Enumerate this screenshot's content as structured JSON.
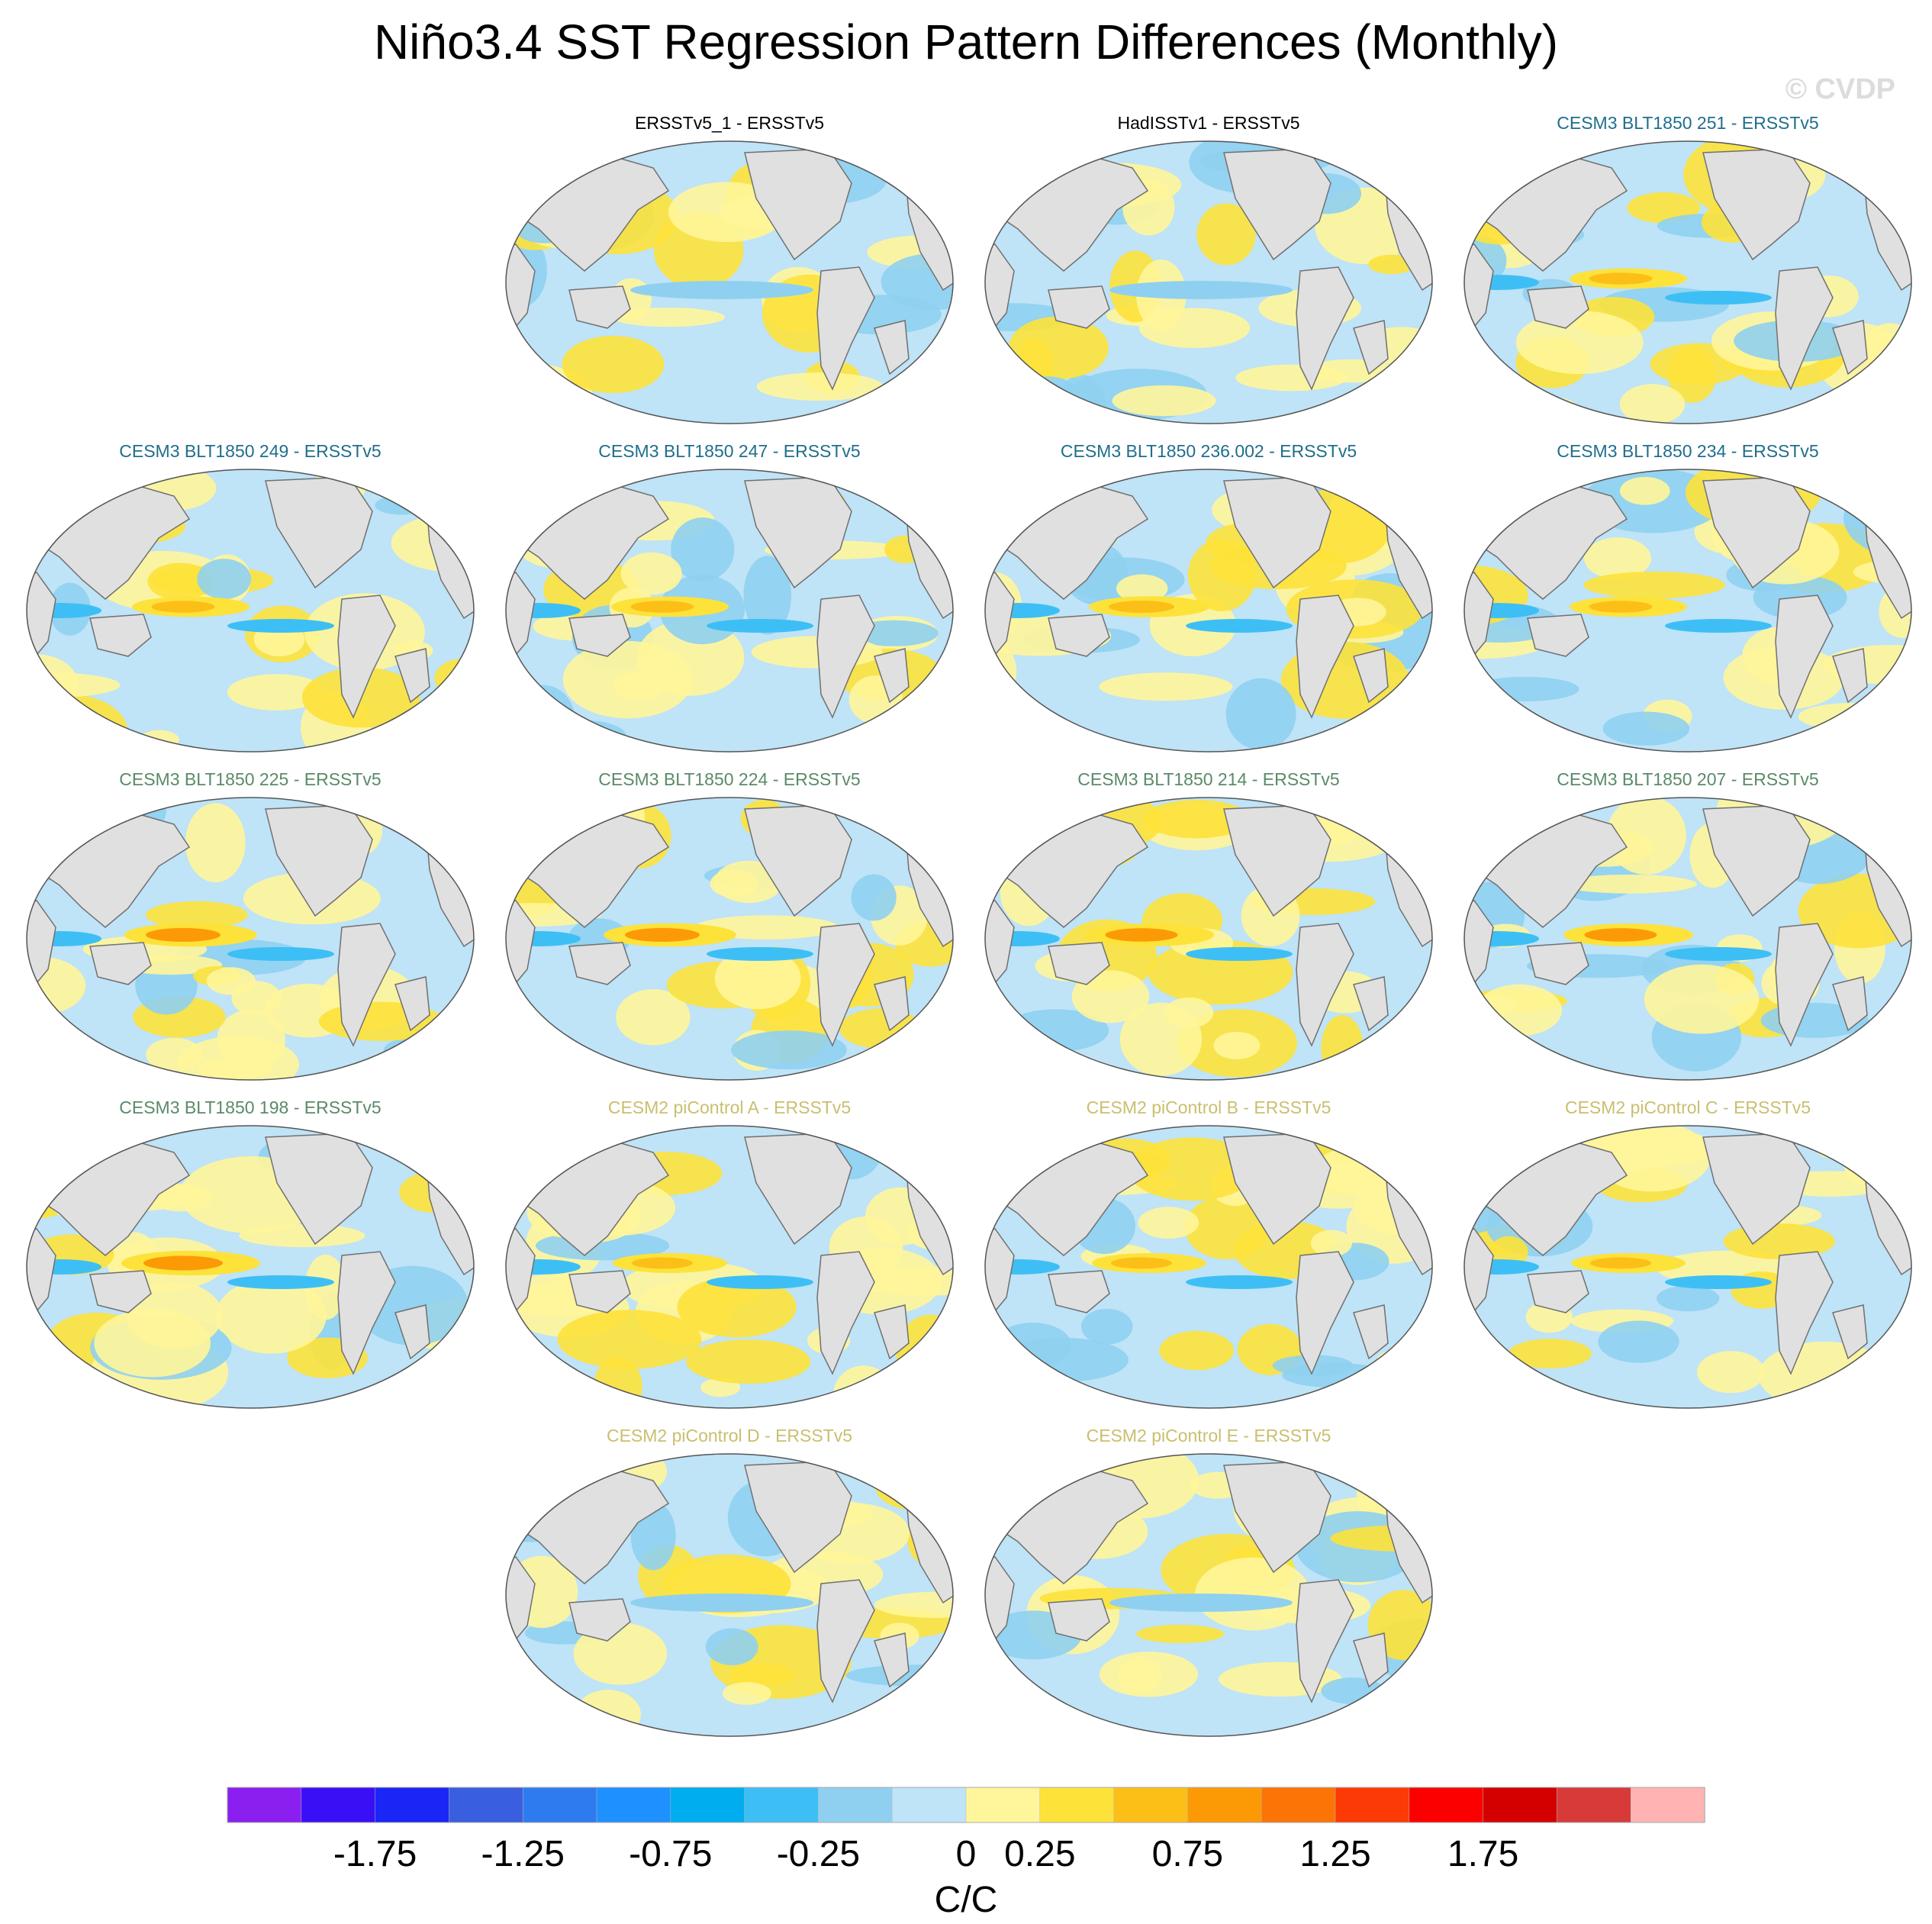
{
  "title": "Niño3.4 SST Regression Pattern Differences (Monthly)",
  "watermark": "© CVDP",
  "chart_data": {
    "type": "heatmap",
    "title": "Niño3.4 SST Regression Pattern Differences (Monthly)",
    "projection": "Robinson, centered on Pacific",
    "panels": [
      {
        "label": "ERSSTv5_1 - ERSSTv5",
        "label_color": "#000000",
        "row": 0,
        "col": 1,
        "pattern": 0.15
      },
      {
        "label": "HadISSTv1 - ERSSTv5",
        "label_color": "#000000",
        "row": 0,
        "col": 2,
        "pattern": 0.25
      },
      {
        "label": "CESM3 BLT1850 251 - ERSSTv5",
        "label_color": "#1f6e8c",
        "row": 0,
        "col": 3,
        "pattern": 0.55
      },
      {
        "label": "CESM3 BLT1850 249 - ERSSTv5",
        "label_color": "#1f6e8c",
        "row": 1,
        "col": 0,
        "pattern": 0.55
      },
      {
        "label": "CESM3 BLT1850 247 - ERSSTv5",
        "label_color": "#1f6e8c",
        "row": 1,
        "col": 1,
        "pattern": 0.55
      },
      {
        "label": "CESM3 BLT1850 236.002 - ERSSTv5",
        "label_color": "#1f6e8c",
        "row": 1,
        "col": 2,
        "pattern": 0.6
      },
      {
        "label": "CESM3 BLT1850 234 - ERSSTv5",
        "label_color": "#1f6e8c",
        "row": 1,
        "col": 3,
        "pattern": 0.55
      },
      {
        "label": "CESM3 BLT1850 225 - ERSSTv5",
        "label_color": "#5a8a68",
        "row": 2,
        "col": 0,
        "pattern": 0.8
      },
      {
        "label": "CESM3 BLT1850 224 - ERSSTv5",
        "label_color": "#5a8a68",
        "row": 2,
        "col": 1,
        "pattern": 0.8
      },
      {
        "label": "CESM3 BLT1850 214 - ERSSTv5",
        "label_color": "#5a8a68",
        "row": 2,
        "col": 2,
        "pattern": 0.75
      },
      {
        "label": "CESM3 BLT1850 207 - ERSSTv5",
        "label_color": "#5a8a68",
        "row": 2,
        "col": 3,
        "pattern": 0.75
      },
      {
        "label": "CESM3 BLT1850 198 - ERSSTv5",
        "label_color": "#5a8a68",
        "row": 3,
        "col": 0,
        "pattern": 0.9
      },
      {
        "label": "CESM2 piControl A - ERSSTv5",
        "label_color": "#c9bf6e",
        "row": 3,
        "col": 1,
        "pattern": 0.5
      },
      {
        "label": "CESM2 piControl B - ERSSTv5",
        "label_color": "#c9bf6e",
        "row": 3,
        "col": 2,
        "pattern": 0.5
      },
      {
        "label": "CESM2 piControl C - ERSSTv5",
        "label_color": "#c9bf6e",
        "row": 3,
        "col": 3,
        "pattern": 0.5
      },
      {
        "label": "CESM2 piControl D - ERSSTv5",
        "label_color": "#c9bf6e",
        "row": 4,
        "col": 1,
        "pattern": 0.45
      },
      {
        "label": "CESM2 piControl E - ERSSTv5",
        "label_color": "#c9bf6e",
        "row": 4,
        "col": 2,
        "pattern": 0.45
      }
    ],
    "colorbar": {
      "colors": [
        "#8a1ff0",
        "#3a0ff5",
        "#1a26f5",
        "#3a5ee0",
        "#2e7bf0",
        "#1e90ff",
        "#00aeef",
        "#3dbff5",
        "#8fd0f0",
        "#bfe3f7",
        "#fff59a",
        "#fde23a",
        "#fcbf18",
        "#fc9a06",
        "#fc7306",
        "#fc3a06",
        "#fc0000",
        "#d40000",
        "#d83a3a",
        "#ffb3b3"
      ],
      "tick_labels": [
        "-1.75",
        "-1.25",
        "-0.75",
        "-0.25",
        "0",
        "0.25",
        "0.75",
        "1.25",
        "1.75"
      ],
      "tick_boundaries": [
        2,
        4,
        6,
        8,
        10,
        11,
        13,
        15,
        17
      ],
      "unit": "C/C"
    },
    "land_color": "#e0e0e0",
    "coastline_color": "#707070"
  }
}
